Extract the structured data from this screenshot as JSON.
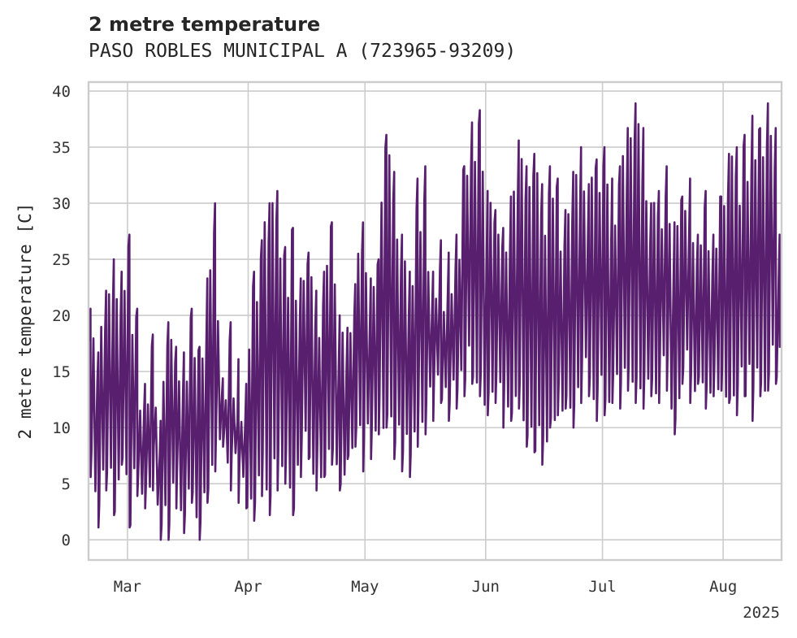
{
  "title": "2 metre temperature",
  "subtitle": "PASO ROBLES MUNICIPAL A (723965-93209)",
  "chart_data": {
    "type": "line",
    "title": "2 metre temperature",
    "subtitle": "PASO ROBLES MUNICIPAL A (723965-93209)",
    "ylabel": "2 metre temperature [C]",
    "xlabel": "",
    "ylim": [
      -1.8,
      40.8
    ],
    "xlim": [
      "2025-02-19",
      "2025-08-16"
    ],
    "yticks": [
      0,
      5,
      10,
      15,
      20,
      25,
      30,
      35,
      40
    ],
    "xticks": [
      {
        "date": "2025-03-01",
        "label": "Mar"
      },
      {
        "date": "2025-04-01",
        "label": "Apr"
      },
      {
        "date": "2025-05-01",
        "label": "May"
      },
      {
        "date": "2025-06-01",
        "label": "Jun"
      },
      {
        "date": "2025-07-01",
        "label": "Jul"
      },
      {
        "date": "2025-08-01",
        "label": "Aug"
      }
    ],
    "x_offset_label": "2025",
    "grid": true,
    "line_color": "#581f6e",
    "series": [
      {
        "values_desc": "daily min/max sampled",
        "x": [
          "2025-02-19",
          "2025-02-21",
          "2025-02-23",
          "2025-02-25",
          "2025-02-27",
          "2025-03-01",
          "2025-03-03",
          "2025-03-05",
          "2025-03-07",
          "2025-03-09",
          "2025-03-11",
          "2025-03-13",
          "2025-03-15",
          "2025-03-17",
          "2025-03-19",
          "2025-03-21",
          "2025-03-23",
          "2025-03-25",
          "2025-03-27",
          "2025-03-29",
          "2025-03-31",
          "2025-04-02",
          "2025-04-04",
          "2025-04-06",
          "2025-04-08",
          "2025-04-10",
          "2025-04-12",
          "2025-04-14",
          "2025-04-16",
          "2025-04-18",
          "2025-04-20",
          "2025-04-22",
          "2025-04-24",
          "2025-04-26",
          "2025-04-28",
          "2025-04-30",
          "2025-05-02",
          "2025-05-04",
          "2025-05-06",
          "2025-05-08",
          "2025-05-10",
          "2025-05-12",
          "2025-05-14",
          "2025-05-16",
          "2025-05-18",
          "2025-05-20",
          "2025-05-22",
          "2025-05-24",
          "2025-05-26",
          "2025-05-28",
          "2025-05-30",
          "2025-06-01",
          "2025-06-03",
          "2025-06-05",
          "2025-06-07",
          "2025-06-09",
          "2025-06-11",
          "2025-06-13",
          "2025-06-15",
          "2025-06-17",
          "2025-06-19",
          "2025-06-21",
          "2025-06-23",
          "2025-06-25",
          "2025-06-27",
          "2025-06-29",
          "2025-07-01",
          "2025-07-03",
          "2025-07-05",
          "2025-07-07",
          "2025-07-09",
          "2025-07-11",
          "2025-07-13",
          "2025-07-15",
          "2025-07-17",
          "2025-07-19",
          "2025-07-21",
          "2025-07-23",
          "2025-07-25",
          "2025-07-27",
          "2025-07-29",
          "2025-07-31",
          "2025-08-02",
          "2025-08-04",
          "2025-08-06",
          "2025-08-08",
          "2025-08-10",
          "2025-08-12",
          "2025-08-14",
          "2025-08-15"
        ],
        "max": [
          20.6,
          16.7,
          22.2,
          25.0,
          23.9,
          27.2,
          20.6,
          13.9,
          18.3,
          10.6,
          19.4,
          17.2,
          16.7,
          20.6,
          17.2,
          23.3,
          30.0,
          14.4,
          19.4,
          16.1,
          13.9,
          23.9,
          26.7,
          30.0,
          31.1,
          26.1,
          27.8,
          23.3,
          25.6,
          22.2,
          23.9,
          28.3,
          20.0,
          18.9,
          22.8,
          28.3,
          23.3,
          25.0,
          36.1,
          32.8,
          27.2,
          23.9,
          32.2,
          33.3,
          23.9,
          26.7,
          25.6,
          27.2,
          33.3,
          37.2,
          38.3,
          31.1,
          29.4,
          27.8,
          30.6,
          35.6,
          33.3,
          34.4,
          31.7,
          33.3,
          32.2,
          29.4,
          32.8,
          35.0,
          31.7,
          33.9,
          35.0,
          32.2,
          33.3,
          36.7,
          38.9,
          36.7,
          30.0,
          31.1,
          33.3,
          28.3,
          30.6,
          32.2,
          27.2,
          31.1,
          27.2,
          30.6,
          34.4,
          35.0,
          36.1,
          37.8,
          36.7,
          38.9,
          36.7,
          27.2
        ],
        "min": [
          5.6,
          1.1,
          4.4,
          2.2,
          6.7,
          1.1,
          3.9,
          2.8,
          4.4,
          0.0,
          0.0,
          2.8,
          0.6,
          3.3,
          0.0,
          3.3,
          6.1,
          8.3,
          4.4,
          3.3,
          2.8,
          1.7,
          3.9,
          2.2,
          4.4,
          5.0,
          2.2,
          5.6,
          7.2,
          4.4,
          5.6,
          6.7,
          4.4,
          7.2,
          8.3,
          6.1,
          7.2,
          9.4,
          10.0,
          7.2,
          6.1,
          5.6,
          8.3,
          9.4,
          10.6,
          12.2,
          10.6,
          11.7,
          12.8,
          13.9,
          12.8,
          11.1,
          12.2,
          10.0,
          10.6,
          11.7,
          8.3,
          7.8,
          6.7,
          10.0,
          11.1,
          11.7,
          10.0,
          12.2,
          12.8,
          10.6,
          11.1,
          12.2,
          11.7,
          13.3,
          12.2,
          11.7,
          12.8,
          12.2,
          13.3,
          9.4,
          13.9,
          12.2,
          13.9,
          11.7,
          12.8,
          13.3,
          12.2,
          11.1,
          12.8,
          10.6,
          12.8,
          13.3,
          13.9,
          17.2
        ]
      }
    ]
  }
}
